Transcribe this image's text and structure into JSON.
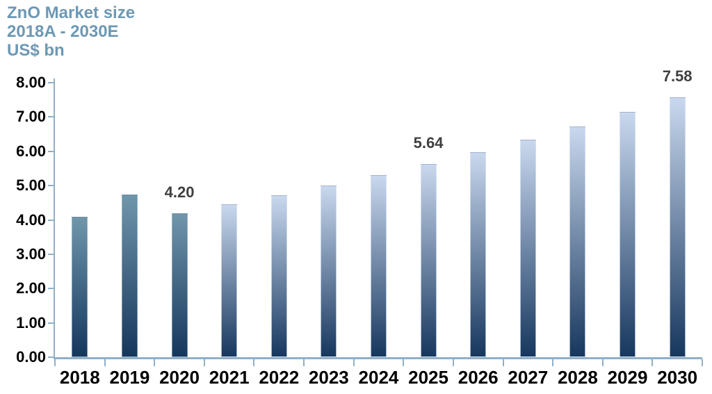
{
  "chart_data": {
    "type": "bar",
    "title": "ZnO Market size",
    "subtitle": "2018A - 2030E",
    "unit_label": "US$ bn",
    "categories": [
      "2018",
      "2019",
      "2020",
      "2021",
      "2022",
      "2023",
      "2024",
      "2025",
      "2026",
      "2027",
      "2028",
      "2029",
      "2030"
    ],
    "values": [
      4.1,
      4.74,
      4.2,
      4.45,
      4.72,
      5.0,
      5.31,
      5.64,
      5.98,
      6.34,
      6.73,
      7.14,
      7.58
    ],
    "bar_styles": [
      "actual",
      "actual",
      "actual",
      "estimate",
      "estimate",
      "estimate",
      "estimate",
      "estimate",
      "estimate",
      "estimate",
      "estimate",
      "estimate",
      "estimate"
    ],
    "data_labels": {
      "2020": "4.20",
      "2025": "5.64",
      "2030": "7.58"
    },
    "xlabel": "",
    "ylabel": "US$ bn",
    "ylim": [
      0,
      8
    ],
    "y_tick_step": 1,
    "y_tick_labels": [
      "0.00",
      "1.00",
      "2.00",
      "3.00",
      "4.00",
      "5.00",
      "6.00",
      "7.00",
      "8.00"
    ],
    "grid": false,
    "legend": "none",
    "colors": {
      "title_text": "#6d98b4",
      "axis_line": "#8fafc7",
      "tick_label_text": "#000000",
      "data_label_text": "#3f3f3f",
      "actual_bar_top": "#7096ab",
      "actual_bar_bottom": "#16365c",
      "estimate_bar_top": "#c9d8ee",
      "estimate_bar_bottom": "#17375e",
      "background": "#ffffff"
    }
  }
}
